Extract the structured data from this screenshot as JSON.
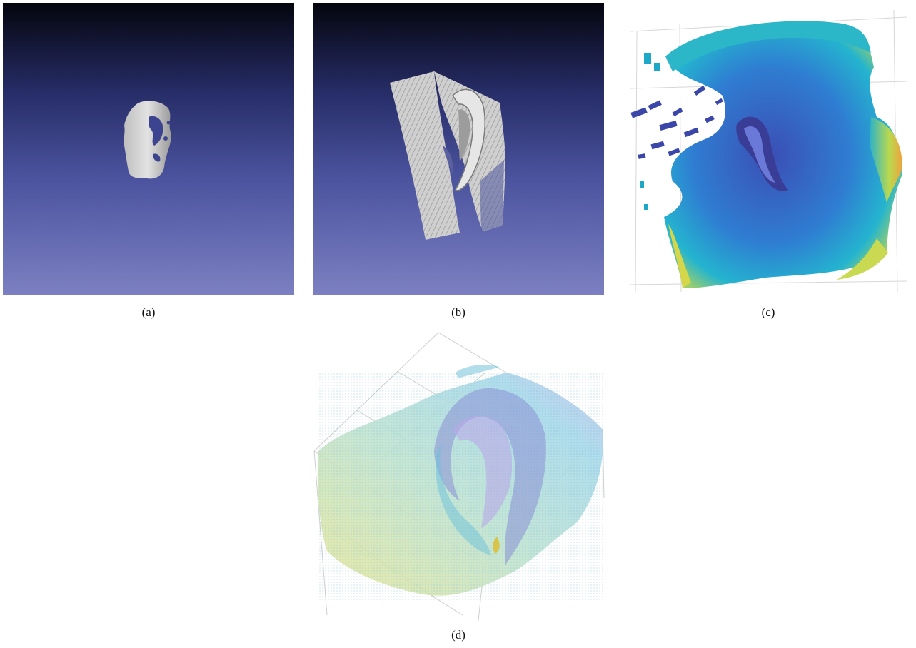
{
  "figure": {
    "panels": [
      {
        "id": "a",
        "caption": "(a)"
      },
      {
        "id": "b",
        "caption": "(b)"
      },
      {
        "id": "c",
        "caption": "(c)"
      },
      {
        "id": "d",
        "caption": "(d)"
      }
    ]
  },
  "colors": {
    "render_bg_top": "#05060f",
    "render_bg_mid": "#3d448f",
    "render_bg_bottom": "#7a7fc0",
    "mesh_gray": "#c9c9c9",
    "cloud_blue": "#3b6fd0",
    "cloud_cyan": "#2ab3d6",
    "cloud_indigo": "#3b3f9c",
    "cloud_yellow": "#d8df4a",
    "cloud_orange": "#f0a23c"
  }
}
